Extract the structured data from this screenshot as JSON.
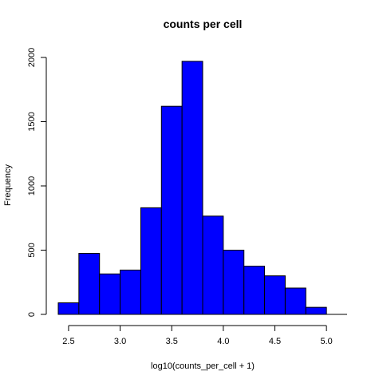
{
  "chart_data": {
    "type": "bar",
    "title": "counts per cell",
    "xlabel": "log10(counts_per_cell + 1)",
    "ylabel": "Frequency",
    "bar_color": "#0000ff",
    "bar_edge_color": "#000000",
    "bins": [
      {
        "x0": 2.4,
        "x1": 2.6,
        "count": 90
      },
      {
        "x0": 2.6,
        "x1": 2.8,
        "count": 475
      },
      {
        "x0": 2.8,
        "x1": 3.0,
        "count": 315
      },
      {
        "x0": 3.0,
        "x1": 3.2,
        "count": 345
      },
      {
        "x0": 3.2,
        "x1": 3.4,
        "count": 830
      },
      {
        "x0": 3.4,
        "x1": 3.6,
        "count": 1620
      },
      {
        "x0": 3.6,
        "x1": 3.8,
        "count": 1970
      },
      {
        "x0": 3.8,
        "x1": 4.0,
        "count": 765
      },
      {
        "x0": 4.0,
        "x1": 4.2,
        "count": 500
      },
      {
        "x0": 4.2,
        "x1": 4.4,
        "count": 375
      },
      {
        "x0": 4.4,
        "x1": 4.6,
        "count": 300
      },
      {
        "x0": 4.6,
        "x1": 4.8,
        "count": 205
      },
      {
        "x0": 4.8,
        "x1": 5.0,
        "count": 55
      },
      {
        "x0": 5.0,
        "x1": 5.2,
        "count": 0
      }
    ],
    "xlim": [
      2.4,
      5.2
    ],
    "ylim": [
      0,
      2000
    ],
    "xticks": [
      2.5,
      3.0,
      3.5,
      4.0,
      4.5,
      5.0
    ],
    "xtick_labels": [
      "2.5",
      "3.0",
      "3.5",
      "4.0",
      "4.5",
      "5.0"
    ],
    "yticks": [
      0,
      500,
      1000,
      1500,
      2000
    ],
    "ytick_labels": [
      "0",
      "500",
      "1000",
      "1500",
      "2000"
    ],
    "grid": false,
    "legend": "none"
  }
}
